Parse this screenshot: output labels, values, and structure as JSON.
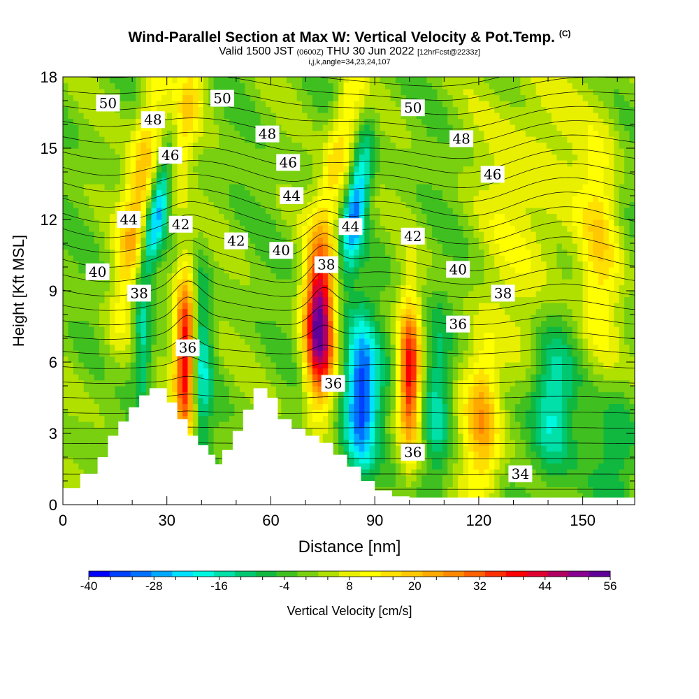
{
  "title": {
    "main": "Wind-Parallel Section at Max W: Vertical Velocity & Pot.Temp.",
    "copyright": "(C)",
    "valid_prefix": "Valid 1500 JST",
    "valid_utc": "(0600Z)",
    "valid_date": "THU 30 Jun 2022",
    "forecast": "[12hrFcst@2233z]",
    "indices": "i,j,k,angle=34,23,24,107"
  },
  "chart_data": {
    "type": "heatmap",
    "xlabel": "Distance [nm]",
    "ylabel": "Height [Kft MSL]",
    "xlim": [
      0,
      165
    ],
    "ylim": [
      0,
      18
    ],
    "x_ticks": [
      "0",
      "30",
      "60",
      "90",
      "120",
      "150"
    ],
    "y_ticks": [
      "0",
      "3",
      "6",
      "9",
      "12",
      "15",
      "18"
    ],
    "colorbar": {
      "label": "Vertical Velocity [cm/s]",
      "range": [
        -40,
        56
      ],
      "step": 4,
      "tick_labels": [
        "-40",
        "-28",
        "-16",
        "-4",
        "8",
        "20",
        "32",
        "44",
        "56"
      ],
      "colors": [
        "#0000ff",
        "#0040ff",
        "#0070ff",
        "#00a8ff",
        "#00e0ff",
        "#00f8e0",
        "#00e0a8",
        "#00c870",
        "#10b840",
        "#40c020",
        "#78d010",
        "#b0e000",
        "#e8f000",
        "#ffff00",
        "#ffe000",
        "#ffc800",
        "#ffa800",
        "#ff8800",
        "#ff6000",
        "#ff3000",
        "#ff0000",
        "#e00030",
        "#b00060",
        "#880090",
        "#600098"
      ]
    },
    "terrain_top": [
      [
        0,
        0.7
      ],
      [
        5,
        1.3
      ],
      [
        10,
        2.0
      ],
      [
        13,
        2.9
      ],
      [
        16,
        3.5
      ],
      [
        19,
        4.1
      ],
      [
        22,
        4.6
      ],
      [
        25,
        4.9
      ],
      [
        30,
        4.3
      ],
      [
        33,
        3.6
      ],
      [
        36,
        2.9
      ],
      [
        39,
        2.5
      ],
      [
        42,
        2.1
      ],
      [
        44,
        1.7
      ],
      [
        46,
        2.3
      ],
      [
        49,
        3.1
      ],
      [
        52,
        4.0
      ],
      [
        55,
        4.9
      ],
      [
        59,
        4.5
      ],
      [
        62,
        3.6
      ],
      [
        66,
        3.2
      ],
      [
        70,
        2.9
      ],
      [
        74,
        2.6
      ],
      [
        78,
        2.1
      ],
      [
        82,
        1.6
      ],
      [
        86,
        1.0
      ],
      [
        90,
        0.6
      ],
      [
        95,
        0.35
      ],
      [
        100,
        0.3
      ]
    ],
    "theta_contour_labels": [
      {
        "label": "50",
        "x": 13,
        "y": 16.9
      },
      {
        "label": "48",
        "x": 26,
        "y": 16.2
      },
      {
        "label": "46",
        "x": 31,
        "y": 14.7
      },
      {
        "label": "44",
        "x": 19,
        "y": 12.0
      },
      {
        "label": "42",
        "x": 34,
        "y": 11.8
      },
      {
        "label": "40",
        "x": 10,
        "y": 9.8
      },
      {
        "label": "38",
        "x": 22,
        "y": 8.9
      },
      {
        "label": "36",
        "x": 36,
        "y": 6.6
      },
      {
        "label": "50",
        "x": 46,
        "y": 17.1
      },
      {
        "label": "48",
        "x": 59,
        "y": 15.6
      },
      {
        "label": "46",
        "x": 65,
        "y": 14.4
      },
      {
        "label": "44",
        "x": 66,
        "y": 13.0
      },
      {
        "label": "42",
        "x": 50,
        "y": 11.1
      },
      {
        "label": "40",
        "x": 63,
        "y": 10.7
      },
      {
        "label": "38",
        "x": 76,
        "y": 10.1
      },
      {
        "label": "36",
        "x": 78,
        "y": 5.1
      },
      {
        "label": "44",
        "x": 83,
        "y": 11.7
      },
      {
        "label": "50",
        "x": 101,
        "y": 16.7
      },
      {
        "label": "48",
        "x": 115,
        "y": 15.4
      },
      {
        "label": "46",
        "x": 124,
        "y": 13.9
      },
      {
        "label": "42",
        "x": 101,
        "y": 11.3
      },
      {
        "label": "40",
        "x": 114,
        "y": 9.9
      },
      {
        "label": "38",
        "x": 127,
        "y": 8.9
      },
      {
        "label": "36",
        "x": 114,
        "y": 7.6
      },
      {
        "label": "36",
        "x": 101,
        "y": 2.2
      },
      {
        "label": "34",
        "x": 132,
        "y": 1.3
      }
    ]
  }
}
